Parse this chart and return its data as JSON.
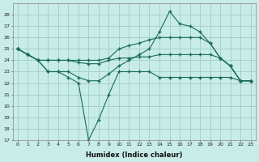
{
  "xlabel": "Humidex (Indice chaleur)",
  "bg_color": "#c8ece8",
  "grid_color": "#a0ccc8",
  "line_color": "#1a6b5a",
  "xlim": [
    -0.5,
    23.5
  ],
  "ylim": [
    17,
    29
  ],
  "yticks": [
    17,
    18,
    19,
    20,
    21,
    22,
    23,
    24,
    25,
    26,
    27,
    28
  ],
  "xticks": [
    0,
    1,
    2,
    3,
    4,
    5,
    6,
    7,
    8,
    9,
    10,
    11,
    12,
    13,
    14,
    15,
    16,
    17,
    18,
    19,
    20,
    21,
    22,
    23
  ],
  "series": [
    {
      "x": [
        0,
        1,
        2,
        3,
        4,
        5,
        6,
        7,
        8,
        9,
        10,
        11,
        12,
        13,
        14,
        15,
        16,
        17,
        18,
        19,
        20,
        21,
        22,
        23
      ],
      "y": [
        25,
        24.5,
        24,
        23,
        23,
        23,
        22.5,
        22.2,
        22.2,
        22.8,
        23.5,
        24,
        24.5,
        25,
        26.5,
        28.3,
        27.2,
        27,
        26.5,
        25.5,
        24.2,
        23.5,
        22.2,
        22.2
      ]
    },
    {
      "x": [
        0,
        1,
        2,
        3,
        4,
        5,
        6,
        7,
        8,
        9,
        10,
        11,
        12,
        13,
        14,
        15,
        16,
        17,
        18,
        19,
        20,
        21,
        22,
        23
      ],
      "y": [
        25,
        24.5,
        24,
        24,
        24,
        24,
        24,
        24,
        24,
        24.2,
        25,
        25.3,
        25.5,
        25.8,
        26,
        26,
        26,
        26,
        26,
        25.5,
        24.2,
        23.5,
        22.2,
        22.2
      ]
    },
    {
      "x": [
        0,
        1,
        2,
        3,
        4,
        5,
        6,
        7,
        8,
        9,
        10,
        11,
        12,
        13,
        14,
        15,
        16,
        17,
        18,
        19,
        20,
        21,
        22,
        23
      ],
      "y": [
        25,
        24.5,
        24,
        24,
        24,
        24,
        23.8,
        23.7,
        23.7,
        24,
        24.2,
        24.2,
        24.3,
        24.3,
        24.5,
        24.5,
        24.5,
        24.5,
        24.5,
        24.5,
        24.2,
        23.5,
        22.2,
        22.2
      ]
    },
    {
      "x": [
        0,
        1,
        2,
        3,
        4,
        5,
        6,
        7,
        8,
        9,
        10,
        11,
        12,
        13,
        14,
        15,
        16,
        17,
        18,
        19,
        20,
        21,
        22,
        23
      ],
      "y": [
        25,
        24.5,
        24,
        23,
        23,
        22.5,
        22,
        17,
        18.8,
        21,
        23,
        23,
        23,
        23,
        22.5,
        22.5,
        22.5,
        22.5,
        22.5,
        22.5,
        22.5,
        22.5,
        22.2,
        22.2
      ]
    }
  ]
}
